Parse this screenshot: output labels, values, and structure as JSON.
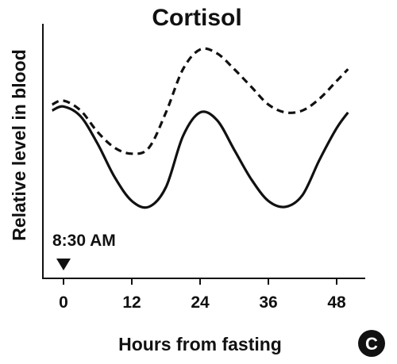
{
  "chart_data": {
    "type": "line",
    "title": "Cortisol",
    "xlabel": "Hours from fasting",
    "ylabel": "Relative level in blood",
    "xlim": [
      -3,
      52
    ],
    "ylim": [
      0,
      100
    ],
    "x_ticks": [
      0,
      12,
      24,
      36,
      48
    ],
    "y_ticks_shown": false,
    "grid": false,
    "legend": "none",
    "annotation": {
      "text": "8:30 AM",
      "x": 0,
      "marker": "down-triangle"
    },
    "panel_label": "C",
    "series": [
      {
        "style": "solid",
        "color": "#111111",
        "x": [
          -2,
          0,
          3,
          6,
          9,
          12,
          15,
          18,
          21,
          24,
          27,
          30,
          33,
          36,
          39,
          42,
          45,
          48,
          50
        ],
        "y": [
          64,
          66,
          61,
          47,
          30,
          18,
          15,
          25,
          51,
          63,
          59,
          44,
          29,
          18,
          15,
          21,
          39,
          55,
          63
        ]
      },
      {
        "style": "dashed",
        "color": "#111111",
        "x": [
          -2,
          0,
          3,
          6,
          9,
          12,
          15,
          18,
          21,
          24,
          27,
          30,
          33,
          36,
          39,
          42,
          45,
          48,
          50
        ],
        "y": [
          67,
          69,
          64,
          53,
          45,
          42,
          45,
          63,
          85,
          95,
          93,
          85,
          76,
          67,
          63,
          64,
          70,
          79,
          85
        ]
      }
    ]
  }
}
